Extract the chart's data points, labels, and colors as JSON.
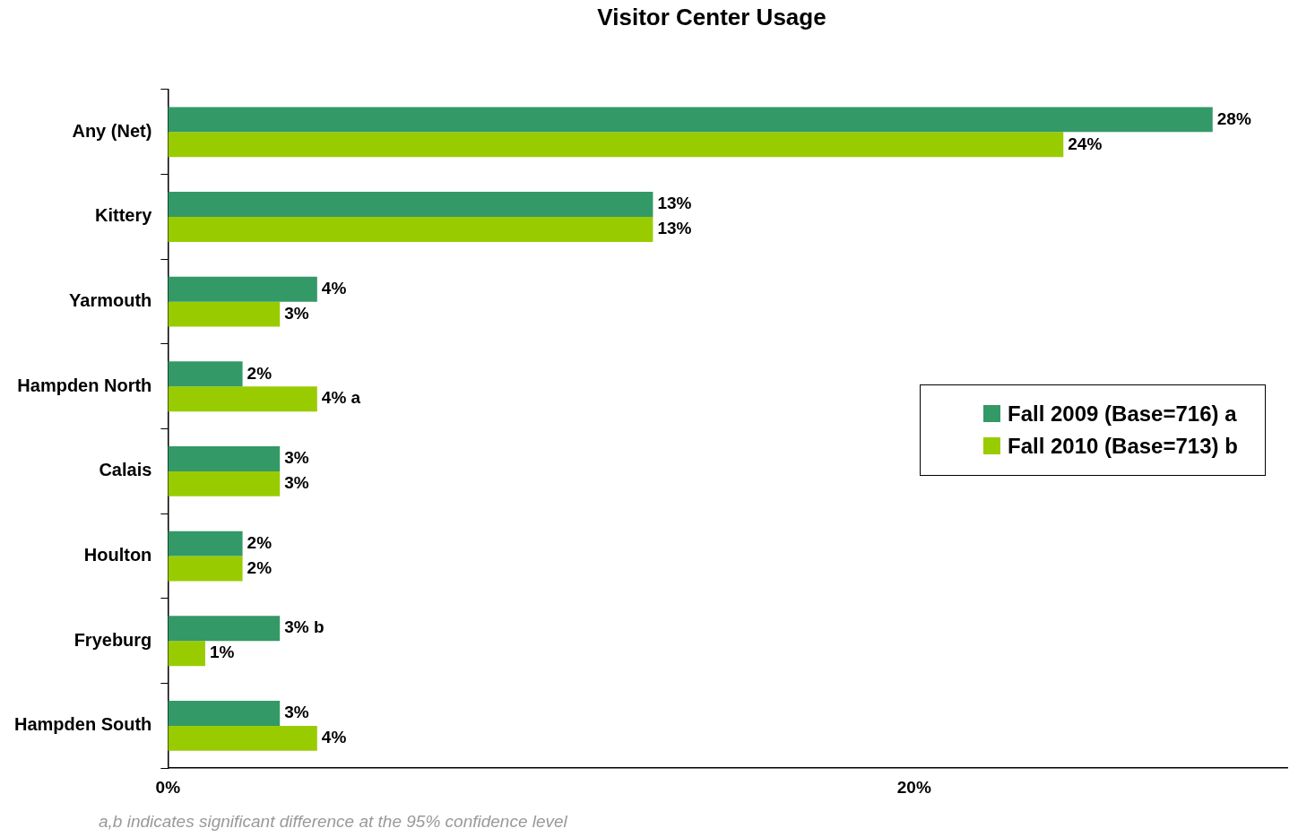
{
  "chart_data": {
    "type": "bar",
    "orientation": "horizontal",
    "title": "Visitor Center Usage",
    "categories": [
      "Any (Net)",
      "Kittery",
      "Yarmouth",
      "Hampden North",
      "Calais",
      "Houlton",
      "Fryeburg",
      "Hampden South"
    ],
    "series": [
      {
        "name": "Fall 2009 (Base=716) a",
        "color": "#339966",
        "values": [
          28,
          13,
          4,
          2,
          3,
          2,
          3,
          3
        ],
        "value_labels": [
          "28%",
          "13%",
          "4%",
          "2%",
          "3%",
          "2%",
          "3% b",
          "3%"
        ]
      },
      {
        "name": "Fall 2010 (Base=713) b",
        "color": "#99cc00",
        "values": [
          24,
          13,
          3,
          4,
          3,
          2,
          1,
          4
        ],
        "value_labels": [
          "24%",
          "13%",
          "3%",
          "4% a",
          "3%",
          "2%",
          "1%",
          "4%"
        ]
      }
    ],
    "xlim": [
      0,
      30
    ],
    "xticks": [
      {
        "value": 0,
        "label": "0%"
      },
      {
        "value": 20,
        "label": "20%"
      }
    ],
    "legend": "right",
    "annotations": [
      "a,b indicates significant difference at the 95% confidence level"
    ]
  }
}
